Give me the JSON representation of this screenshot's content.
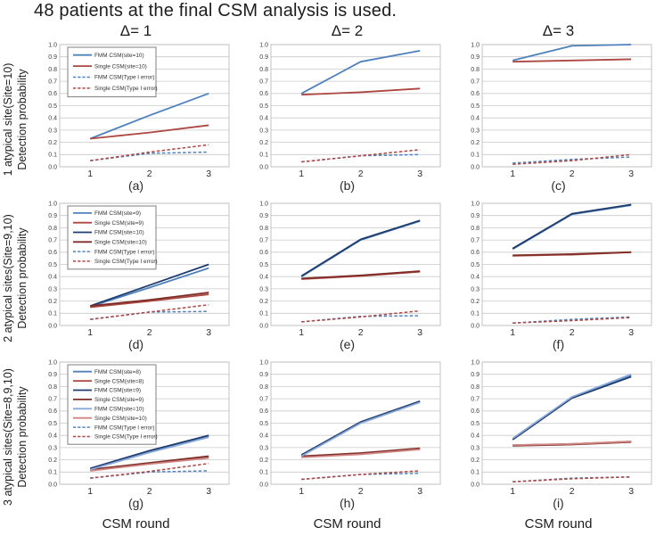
{
  "title": "48 patients at the final CSM analysis is used.",
  "x_axis_label": "CSM round",
  "columns": [
    {
      "label": "Δ= 1"
    },
    {
      "label": "Δ= 2"
    },
    {
      "label": "Δ= 3"
    }
  ],
  "rows": [
    {
      "label": "1 atypical site(Site=10)",
      "sublabel": "Detection probability"
    },
    {
      "label": "2 atypical sites(Site=9,10)",
      "sublabel": "Detection probability"
    },
    {
      "label": "3 atypical sites(Site=8,9,10)",
      "sublabel": "Detection probability"
    }
  ],
  "colors": {
    "medium_blue": "#4F81BD",
    "medium_red": "#AC4742",
    "dark_blue": "#1F3C6E",
    "dark_red": "#7E2D28",
    "light_blue": "#89A9D8",
    "light_red": "#CE8683",
    "gridline": "#c9c9c9",
    "plot_border": "#bdbdbd"
  },
  "chart_data": [
    {
      "type": "line",
      "caption": "(a)",
      "legend": true,
      "x": [
        "1",
        "2",
        "3"
      ],
      "ylim": [
        0,
        1
      ],
      "yticks": [
        1.0,
        0.9,
        0.8,
        0.7,
        0.6,
        0.5,
        0.4,
        0.3,
        0.2,
        0.1,
        0.0
      ],
      "series": [
        {
          "name": "FMM CSM(site=10)",
          "color": "#4F81BD",
          "dash": false,
          "values": [
            0.23,
            0.42,
            0.6
          ]
        },
        {
          "name": "Single CSM(site=10)",
          "color": "#AC4742",
          "dash": false,
          "values": [
            0.23,
            0.28,
            0.34
          ]
        },
        {
          "name": "FMM CSM(Type I error)",
          "color": "#4F81BD",
          "dash": true,
          "values": [
            0.05,
            0.11,
            0.12
          ]
        },
        {
          "name": "Single CSM(Type I error)",
          "color": "#AC4742",
          "dash": true,
          "values": [
            0.05,
            0.12,
            0.18
          ]
        }
      ]
    },
    {
      "type": "line",
      "caption": "(b)",
      "legend": false,
      "x": [
        "1",
        "2",
        "3"
      ],
      "ylim": [
        0,
        1
      ],
      "yticks": [
        1.0,
        0.9,
        0.8,
        0.7,
        0.6,
        0.5,
        0.4,
        0.3,
        0.2,
        0.1,
        0.0
      ],
      "series": [
        {
          "name": "FMM CSM(site=10)",
          "color": "#4F81BD",
          "dash": false,
          "values": [
            0.6,
            0.86,
            0.95
          ]
        },
        {
          "name": "Single CSM(site=10)",
          "color": "#AC4742",
          "dash": false,
          "values": [
            0.59,
            0.61,
            0.64
          ]
        },
        {
          "name": "FMM CSM(Type I error)",
          "color": "#4F81BD",
          "dash": true,
          "values": [
            0.04,
            0.09,
            0.1
          ]
        },
        {
          "name": "Single CSM(Type I error)",
          "color": "#AC4742",
          "dash": true,
          "values": [
            0.04,
            0.09,
            0.14
          ]
        }
      ]
    },
    {
      "type": "line",
      "caption": "(c)",
      "legend": false,
      "x": [
        "1",
        "2",
        "3"
      ],
      "ylim": [
        0,
        1
      ],
      "yticks": [
        1.0,
        0.9,
        0.8,
        0.7,
        0.6,
        0.5,
        0.4,
        0.3,
        0.2,
        0.1,
        0.0
      ],
      "series": [
        {
          "name": "FMM CSM(site=10)",
          "color": "#4F81BD",
          "dash": false,
          "values": [
            0.87,
            0.99,
            1.0
          ]
        },
        {
          "name": "Single CSM(site=10)",
          "color": "#AC4742",
          "dash": false,
          "values": [
            0.86,
            0.87,
            0.88
          ]
        },
        {
          "name": "FMM CSM(Type I error)",
          "color": "#4F81BD",
          "dash": true,
          "values": [
            0.03,
            0.06,
            0.08
          ]
        },
        {
          "name": "Single CSM(Type I error)",
          "color": "#AC4742",
          "dash": true,
          "values": [
            0.02,
            0.05,
            0.1
          ]
        }
      ]
    },
    {
      "type": "line",
      "caption": "(d)",
      "legend": true,
      "x": [
        "1",
        "2",
        "3"
      ],
      "ylim": [
        0,
        1
      ],
      "yticks": [
        1.0,
        0.9,
        0.8,
        0.7,
        0.6,
        0.5,
        0.4,
        0.3,
        0.2,
        0.1,
        0.0
      ],
      "series": [
        {
          "name": "FMM CSM(site=9)",
          "color": "#4F81BD",
          "dash": false,
          "values": [
            0.155,
            0.31,
            0.47
          ]
        },
        {
          "name": "Single CSM(site=9)",
          "color": "#AC4742",
          "dash": false,
          "values": [
            0.15,
            0.2,
            0.255
          ]
        },
        {
          "name": "FMM CSM(site=10)",
          "color": "#1F3C6E",
          "dash": false,
          "values": [
            0.16,
            0.33,
            0.5
          ]
        },
        {
          "name": "Single CSM(site=10)",
          "color": "#7E2D28",
          "dash": false,
          "values": [
            0.16,
            0.21,
            0.27
          ]
        },
        {
          "name": "FMM CSM(Type I error)",
          "color": "#4F81BD",
          "dash": true,
          "values": [
            0.05,
            0.11,
            0.115
          ]
        },
        {
          "name": "Single CSM(Type I error)",
          "color": "#AC4742",
          "dash": true,
          "values": [
            0.05,
            0.11,
            0.17
          ]
        }
      ]
    },
    {
      "type": "line",
      "caption": "(e)",
      "legend": false,
      "x": [
        "1",
        "2",
        "3"
      ],
      "ylim": [
        0,
        1
      ],
      "yticks": [
        1.0,
        0.9,
        0.8,
        0.7,
        0.6,
        0.5,
        0.4,
        0.3,
        0.2,
        0.1,
        0.0
      ],
      "series": [
        {
          "name": "FMM CSM(site=9)",
          "color": "#4F81BD",
          "dash": false,
          "values": [
            0.4,
            0.7,
            0.855
          ]
        },
        {
          "name": "Single CSM(site=9)",
          "color": "#AC4742",
          "dash": false,
          "values": [
            0.38,
            0.405,
            0.44
          ]
        },
        {
          "name": "FMM CSM(site=10)",
          "color": "#1F3C6E",
          "dash": false,
          "values": [
            0.405,
            0.705,
            0.86
          ]
        },
        {
          "name": "Single CSM(site=10)",
          "color": "#7E2D28",
          "dash": false,
          "values": [
            0.385,
            0.41,
            0.445
          ]
        },
        {
          "name": "FMM CSM(Type I error)",
          "color": "#4F81BD",
          "dash": true,
          "values": [
            0.03,
            0.075,
            0.08
          ]
        },
        {
          "name": "Single CSM(Type I error)",
          "color": "#AC4742",
          "dash": true,
          "values": [
            0.03,
            0.07,
            0.12
          ]
        }
      ]
    },
    {
      "type": "line",
      "caption": "(f)",
      "legend": false,
      "x": [
        "1",
        "2",
        "3"
      ],
      "ylim": [
        0,
        1
      ],
      "yticks": [
        1.0,
        0.9,
        0.8,
        0.7,
        0.6,
        0.5,
        0.4,
        0.3,
        0.2,
        0.1,
        0.0
      ],
      "series": [
        {
          "name": "FMM CSM(site=9)",
          "color": "#4F81BD",
          "dash": false,
          "values": [
            0.625,
            0.91,
            0.985
          ]
        },
        {
          "name": "Single CSM(site=9)",
          "color": "#AC4742",
          "dash": false,
          "values": [
            0.57,
            0.58,
            0.6
          ]
        },
        {
          "name": "FMM CSM(site=10)",
          "color": "#1F3C6E",
          "dash": false,
          "values": [
            0.63,
            0.915,
            0.99
          ]
        },
        {
          "name": "Single CSM(site=10)",
          "color": "#7E2D28",
          "dash": false,
          "values": [
            0.575,
            0.585,
            0.6
          ]
        },
        {
          "name": "FMM CSM(Type I error)",
          "color": "#4F81BD",
          "dash": true,
          "values": [
            0.02,
            0.05,
            0.07
          ]
        },
        {
          "name": "Single CSM(Type I error)",
          "color": "#AC4742",
          "dash": true,
          "values": [
            0.02,
            0.04,
            0.065
          ]
        }
      ]
    },
    {
      "type": "line",
      "caption": "(g)",
      "legend": true,
      "x": [
        "1",
        "2",
        "3"
      ],
      "ylim": [
        0,
        1
      ],
      "yticks": [
        1.0,
        0.9,
        0.8,
        0.7,
        0.6,
        0.5,
        0.4,
        0.3,
        0.2,
        0.1,
        0.0
      ],
      "series": [
        {
          "name": "FMM CSM(site=8)",
          "color": "#4F81BD",
          "dash": false,
          "values": [
            0.125,
            0.27,
            0.39
          ]
        },
        {
          "name": "Single CSM(site=8)",
          "color": "#AC4742",
          "dash": false,
          "values": [
            0.115,
            0.17,
            0.22
          ]
        },
        {
          "name": "FMM CSM(site=9)",
          "color": "#1F3C6E",
          "dash": false,
          "values": [
            0.13,
            0.275,
            0.4
          ]
        },
        {
          "name": "Single CSM(site=9)",
          "color": "#7E2D28",
          "dash": false,
          "values": [
            0.12,
            0.175,
            0.23
          ]
        },
        {
          "name": "FMM CSM(site=10)",
          "color": "#89A9D8",
          "dash": false,
          "values": [
            0.12,
            0.26,
            0.385
          ]
        },
        {
          "name": "Single CSM(site=10)",
          "color": "#CE8683",
          "dash": false,
          "values": [
            0.11,
            0.165,
            0.215
          ]
        },
        {
          "name": "FMM CSM(Type I error)",
          "color": "#4F81BD",
          "dash": true,
          "values": [
            0.05,
            0.1,
            0.11
          ]
        },
        {
          "name": "Single CSM(Type I error)",
          "color": "#AC4742",
          "dash": true,
          "values": [
            0.05,
            0.105,
            0.17
          ]
        }
      ]
    },
    {
      "type": "line",
      "caption": "(h)",
      "legend": false,
      "x": [
        "1",
        "2",
        "3"
      ],
      "ylim": [
        0,
        1
      ],
      "yticks": [
        1.0,
        0.9,
        0.8,
        0.7,
        0.6,
        0.5,
        0.4,
        0.3,
        0.2,
        0.1,
        0.0
      ],
      "series": [
        {
          "name": "FMM CSM(site=8)",
          "color": "#4F81BD",
          "dash": false,
          "values": [
            0.235,
            0.505,
            0.675
          ]
        },
        {
          "name": "Single CSM(site=8)",
          "color": "#AC4742",
          "dash": false,
          "values": [
            0.225,
            0.25,
            0.29
          ]
        },
        {
          "name": "FMM CSM(site=9)",
          "color": "#1F3C6E",
          "dash": false,
          "values": [
            0.24,
            0.51,
            0.68
          ]
        },
        {
          "name": "Single CSM(site=9)",
          "color": "#7E2D28",
          "dash": false,
          "values": [
            0.23,
            0.255,
            0.295
          ]
        },
        {
          "name": "FMM CSM(site=10)",
          "color": "#89A9D8",
          "dash": false,
          "values": [
            0.23,
            0.5,
            0.67
          ]
        },
        {
          "name": "Single CSM(site=10)",
          "color": "#CE8683",
          "dash": false,
          "values": [
            0.22,
            0.245,
            0.285
          ]
        },
        {
          "name": "FMM CSM(Type I error)",
          "color": "#4F81BD",
          "dash": true,
          "values": [
            0.04,
            0.08,
            0.09
          ]
        },
        {
          "name": "Single CSM(Type I error)",
          "color": "#AC4742",
          "dash": true,
          "values": [
            0.04,
            0.08,
            0.11
          ]
        }
      ]
    },
    {
      "type": "line",
      "caption": "(i)",
      "legend": false,
      "x": [
        "1",
        "2",
        "3"
      ],
      "ylim": [
        0,
        1
      ],
      "yticks": [
        1.0,
        0.9,
        0.8,
        0.7,
        0.6,
        0.5,
        0.4,
        0.3,
        0.2,
        0.1,
        0.0
      ],
      "series": [
        {
          "name": "FMM CSM(site=8)",
          "color": "#4F81BD",
          "dash": false,
          "values": [
            0.37,
            0.71,
            0.89
          ]
        },
        {
          "name": "Single CSM(site=8)",
          "color": "#AC4742",
          "dash": false,
          "values": [
            0.32,
            0.33,
            0.35
          ]
        },
        {
          "name": "FMM CSM(site=9)",
          "color": "#1F3C6E",
          "dash": false,
          "values": [
            0.365,
            0.705,
            0.88
          ]
        },
        {
          "name": "Single CSM(site=9)",
          "color": "#7E2D28",
          "dash": false,
          "values": [
            0.315,
            0.325,
            0.345
          ]
        },
        {
          "name": "FMM CSM(site=10)",
          "color": "#89A9D8",
          "dash": false,
          "values": [
            0.375,
            0.715,
            0.9
          ]
        },
        {
          "name": "Single CSM(site=10)",
          "color": "#CE8683",
          "dash": false,
          "values": [
            0.32,
            0.33,
            0.35
          ]
        },
        {
          "name": "FMM CSM(Type I error)",
          "color": "#4F81BD",
          "dash": true,
          "values": [
            0.02,
            0.05,
            0.06
          ]
        },
        {
          "name": "Single CSM(Type I error)",
          "color": "#AC4742",
          "dash": true,
          "values": [
            0.02,
            0.045,
            0.06
          ]
        }
      ]
    }
  ]
}
